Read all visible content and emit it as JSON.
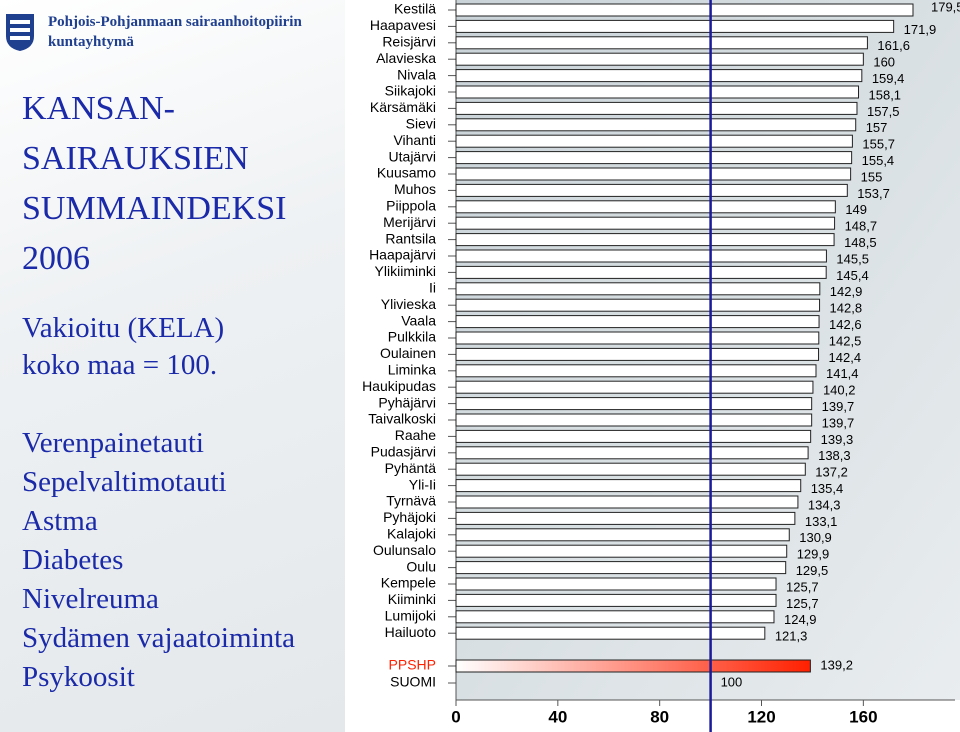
{
  "header": [
    "Pohjois-Pohjanmaan sairaanhoitopiirin",
    "kuntayhtymä"
  ],
  "title": [
    "KANSAN-",
    "SAIRAUKSIEN",
    "SUMMAINDEKSI",
    "2006"
  ],
  "subtitle": [
    "Vakioitu (KELA)",
    "koko maa = 100."
  ],
  "diseases": [
    "Verenpainetauti",
    "Sepelvaltimotauti",
    "Astma",
    "Diabetes",
    "Nivelreuma",
    "Sydämen vajaatoiminta",
    "Psykoosit"
  ],
  "chart_data": {
    "type": "hbar",
    "categories": [
      "Kestilä",
      "Haapavesi",
      "Reisjärvi",
      "Alavieska",
      "Nivala",
      "Siikajoki",
      "Kärsämäki",
      "Sievi",
      "Vihanti",
      "Utajärvi",
      "Kuusamo",
      "Muhos",
      "Piippola",
      "Merijärvi",
      "Rantsila",
      "Haapajärvi",
      "Ylikiiminki",
      "Ii",
      "Ylivieska",
      "Vaala",
      "Pulkkila",
      "Oulainen",
      "Liminka",
      "Haukipudas",
      "Pyhäjärvi",
      "Taivalkoski",
      "Raahe",
      "Pudasjärvi",
      "Pyhäntä",
      "Yli-Ii",
      "Tyrnävä",
      "Pyhäjoki",
      "Kalajoki",
      "Oulunsalo",
      "Oulu",
      "Kempele",
      "Kiiminki",
      "Lumijoki",
      "Hailuoto"
    ],
    "values": [
      179.5,
      171.9,
      161.6,
      160,
      159.4,
      158.1,
      157.5,
      157,
      155.7,
      155.4,
      155,
      153.7,
      149,
      148.7,
      148.5,
      145.5,
      145.4,
      142.9,
      142.8,
      142.6,
      142.5,
      142.4,
      141.4,
      140.2,
      139.7,
      139.7,
      139.3,
      138.3,
      137.2,
      135.4,
      134.3,
      133.1,
      130.9,
      129.9,
      129.5,
      125.7,
      125.7,
      124.9,
      121.3
    ],
    "value_labels": [
      "179,5",
      "171,9",
      "161,6",
      "160",
      "159,4",
      "158,1",
      "157,5",
      "157",
      "155,7",
      "155,4",
      "155",
      "153,7",
      "149",
      "148,7",
      "148,5",
      "145,5",
      "145,4",
      "142,9",
      "142,8",
      "142,6",
      "142,5",
      "142,4",
      "141,4",
      "140,2",
      "139,7",
      "139,7",
      "139,3",
      "138,3",
      "137,2",
      "135,4",
      "134,3",
      "133,1",
      "130,9",
      "129,9",
      "129,5",
      "125,7",
      "125,7",
      "124,9",
      "121,3"
    ],
    "color": "#ffffff",
    "highlight": {
      "name": "PPSHP",
      "value": 139.2,
      "value_label": "139,2",
      "color": "#ff2000"
    },
    "reference": {
      "name": "SUOMI",
      "value": 100,
      "color": "#1a1a9a"
    },
    "xlim": [
      0,
      196
    ],
    "xticks": [
      0,
      40,
      80,
      120,
      160
    ]
  }
}
